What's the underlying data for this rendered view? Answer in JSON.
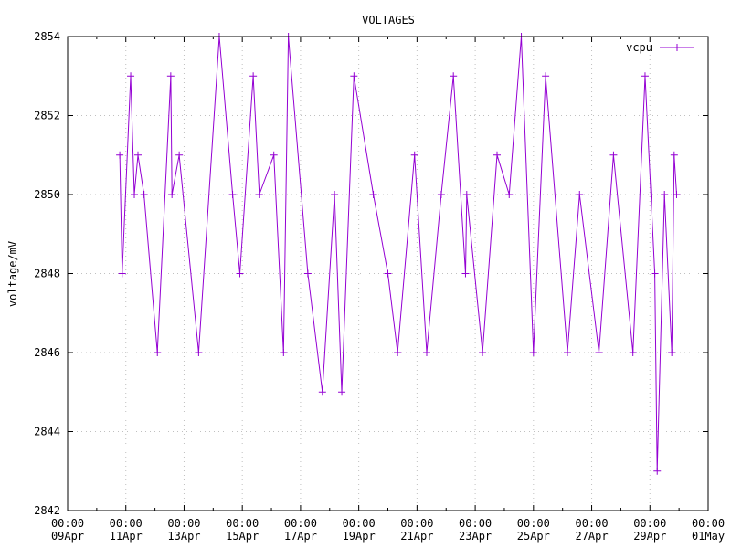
{
  "chart_data": {
    "type": "line",
    "title": "VOLTAGES",
    "xlabel": "",
    "ylabel": "voltage/mV",
    "ylim": [
      2842,
      2854
    ],
    "yticks": [
      2842,
      2844,
      2846,
      2848,
      2850,
      2852,
      2854
    ],
    "xlim": [
      "2024-04-09T00:00",
      "2024-05-01T00:00"
    ],
    "xtick_labels": [
      [
        "00:00",
        "09Apr"
      ],
      [
        "00:00",
        "11Apr"
      ],
      [
        "00:00",
        "13Apr"
      ],
      [
        "00:00",
        "15Apr"
      ],
      [
        "00:00",
        "17Apr"
      ],
      [
        "00:00",
        "19Apr"
      ],
      [
        "00:00",
        "21Apr"
      ],
      [
        "00:00",
        "23Apr"
      ],
      [
        "00:00",
        "25Apr"
      ],
      [
        "00:00",
        "27Apr"
      ],
      [
        "00:00",
        "29Apr"
      ],
      [
        "00:00",
        "01May"
      ]
    ],
    "grid": true,
    "legend": "top-right",
    "colors": {
      "series": "#9400d3",
      "grid": "#c0c0c0",
      "axis": "#000000"
    },
    "series": [
      {
        "name": "vcpu",
        "x": [
          "2024-04-10T19:00",
          "2024-04-10T21:00",
          "2024-04-11T04:00",
          "2024-04-11T07:00",
          "2024-04-11T10:00",
          "2024-04-11T15:00",
          "2024-04-12T02:00",
          "2024-04-12T13:00",
          "2024-04-12T14:00",
          "2024-04-12T20:00",
          "2024-04-13T12:00",
          "2024-04-14T05:00",
          "2024-04-14T16:00",
          "2024-04-14T22:00",
          "2024-04-15T09:00",
          "2024-04-15T14:00",
          "2024-04-16T02:00",
          "2024-04-16T10:00",
          "2024-04-16T14:00",
          "2024-04-17T06:00",
          "2024-04-17T18:00",
          "2024-04-18T04:00",
          "2024-04-18T10:00",
          "2024-04-18T20:00",
          "2024-04-19T12:00",
          "2024-04-20T00:00",
          "2024-04-20T08:00",
          "2024-04-20T22:00",
          "2024-04-21T08:00",
          "2024-04-21T20:00",
          "2024-04-22T06:00",
          "2024-04-22T16:00",
          "2024-04-22T17:00",
          "2024-04-23T06:00",
          "2024-04-23T18:00",
          "2024-04-24T04:00",
          "2024-04-24T14:00",
          "2024-04-25T00:00",
          "2024-04-25T10:00",
          "2024-04-26T04:00",
          "2024-04-26T14:00",
          "2024-04-27T06:00",
          "2024-04-27T18:00",
          "2024-04-28T10:00",
          "2024-04-28T20:00",
          "2024-04-29T04:00",
          "2024-04-29T06:00",
          "2024-04-29T12:00",
          "2024-04-29T18:00",
          "2024-04-29T20:00",
          "2024-04-29T22:00"
        ],
        "values": [
          2851,
          2848,
          2853,
          2850,
          2851,
          2850,
          2846,
          2853,
          2850,
          2851,
          2846,
          2854,
          2850,
          2848,
          2853,
          2850,
          2851,
          2846,
          2854,
          2848,
          2845,
          2850,
          2845,
          2853,
          2850,
          2848,
          2846,
          2851,
          2846,
          2850,
          2853,
          2848,
          2850,
          2846,
          2851,
          2850,
          2854,
          2846,
          2853,
          2846,
          2850,
          2846,
          2851,
          2846,
          2853,
          2848,
          2843,
          2850,
          2846,
          2851,
          2850
        ]
      }
    ]
  }
}
